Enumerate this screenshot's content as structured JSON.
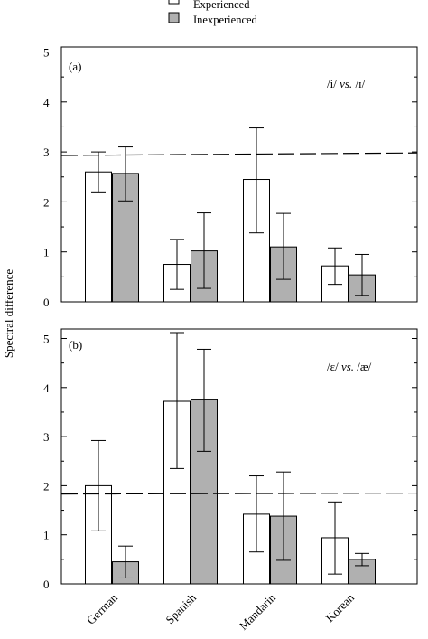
{
  "legend": {
    "items": [
      {
        "label": "Experienced",
        "color": "#ffffff"
      },
      {
        "label": "Inexperienced",
        "color": "#b0b0b0"
      }
    ]
  },
  "ylabel": "Spectral difference",
  "categories": [
    "German",
    "Spanish",
    "Mandarin",
    "Korean"
  ],
  "chart_data": [
    {
      "type": "bar",
      "panel_label": "(a)",
      "contrast_label": [
        "/i/ ",
        "vs.",
        " /ɪ/"
      ],
      "categories": [
        "German",
        "Spanish",
        "Mandarin",
        "Korean"
      ],
      "series": [
        {
          "name": "Experienced",
          "values": [
            2.6,
            0.75,
            2.45,
            0.72
          ],
          "err_low": [
            2.2,
            0.25,
            1.38,
            0.35
          ],
          "err_high": [
            3.0,
            1.25,
            3.48,
            1.08
          ]
        },
        {
          "name": "Inexperienced",
          "values": [
            2.57,
            1.02,
            1.1,
            0.54
          ],
          "err_low": [
            2.02,
            0.27,
            0.45,
            0.13
          ],
          "err_high": [
            3.1,
            1.78,
            1.77,
            0.95
          ]
        }
      ],
      "reference_line": [
        2.93,
        2.98
      ],
      "ylim": [
        0,
        5
      ],
      "yticks": [
        0,
        1,
        2,
        3,
        4,
        5
      ]
    },
    {
      "type": "bar",
      "panel_label": "(b)",
      "contrast_label": [
        "/ɛ/ ",
        "vs.",
        " /æ/"
      ],
      "categories": [
        "German",
        "Spanish",
        "Mandarin",
        "Korean"
      ],
      "series": [
        {
          "name": "Experienced",
          "values": [
            2.0,
            3.72,
            1.42,
            0.94
          ],
          "err_low": [
            1.08,
            2.35,
            0.65,
            0.2
          ],
          "err_high": [
            2.92,
            5.12,
            2.2,
            1.67
          ]
        },
        {
          "name": "Inexperienced",
          "values": [
            0.45,
            3.75,
            1.38,
            0.5
          ],
          "err_low": [
            0.12,
            2.7,
            0.48,
            0.37
          ],
          "err_high": [
            0.77,
            4.78,
            2.28,
            0.62
          ]
        }
      ],
      "reference_line": [
        1.83,
        1.85
      ],
      "ylim": [
        0,
        5.3
      ],
      "yticks": [
        0,
        1,
        2,
        3,
        4,
        5
      ]
    }
  ]
}
